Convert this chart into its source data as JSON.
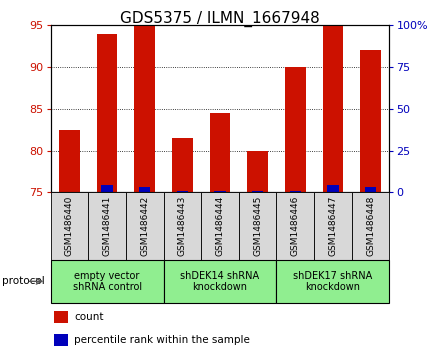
{
  "title": "GDS5375 / ILMN_1667948",
  "samples": [
    "GSM1486440",
    "GSM1486441",
    "GSM1486442",
    "GSM1486443",
    "GSM1486444",
    "GSM1486445",
    "GSM1486446",
    "GSM1486447",
    "GSM1486448"
  ],
  "count_values": [
    82.5,
    94.0,
    95.0,
    81.5,
    84.5,
    80.0,
    90.0,
    95.0,
    92.0
  ],
  "percentile_values": [
    0.5,
    4.5,
    3.0,
    1.0,
    1.0,
    1.0,
    1.0,
    4.5,
    3.0
  ],
  "ylim_left": [
    75,
    95
  ],
  "ylim_right": [
    0,
    100
  ],
  "yticks_left": [
    75,
    80,
    85,
    90,
    95
  ],
  "yticks_right": [
    0,
    25,
    50,
    75,
    100
  ],
  "group_starts": [
    0,
    3,
    6
  ],
  "group_ends": [
    3,
    6,
    9
  ],
  "group_labels": [
    "empty vector\nshRNA control",
    "shDEK14 shRNA\nknockdown",
    "shDEK17 shRNA\nknockdown"
  ],
  "group_color": "#90EE90",
  "sample_box_color": "#D8D8D8",
  "bar_width": 0.55,
  "count_color": "#CC1100",
  "percentile_color": "#0000BB",
  "left_tick_color": "#CC1100",
  "right_tick_color": "#0000BB",
  "title_fontsize": 11,
  "tick_fontsize": 8,
  "bg_color": "#FFFFFF",
  "protocol_label": "protocol"
}
